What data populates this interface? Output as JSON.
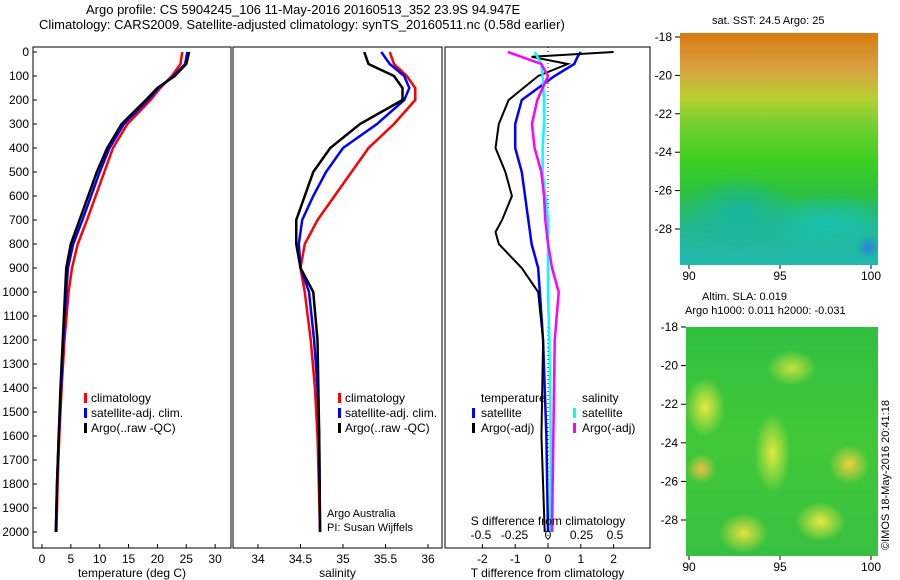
{
  "header": {
    "line1": "Argo profile: CS 5904245_106 11-May-2016 20160513_352 23.9S 94.947E",
    "line2": "Climatology: CARS2009. Satellite-adjusted climatology: synTS_20160511.nc (0.58d earlier)"
  },
  "footer": {
    "credit": "©IMOS 18-May-2016 20:41:18",
    "argo_australia": "Argo Australia",
    "pi": "PI: Susan Wijffels"
  },
  "colors": {
    "climatology": "#ff0000",
    "satellite": "#0000ff",
    "argo": "#000000",
    "s_satellite": "#00ffff",
    "s_argo": "#ff00ff"
  },
  "chart_data": [
    {
      "type": "line",
      "xlabel": "temperature (deg C)",
      "ylabel": "",
      "xlim": [
        -2,
        31
      ],
      "ylim": [
        2050,
        0
      ],
      "xticks": [
        0,
        5,
        10,
        15,
        20,
        25,
        30
      ],
      "yticks": [
        0,
        100,
        200,
        300,
        400,
        500,
        600,
        700,
        800,
        900,
        1000,
        1100,
        1200,
        1300,
        1400,
        1500,
        1600,
        1700,
        1800,
        1900,
        2000
      ],
      "depth": [
        0,
        50,
        100,
        150,
        200,
        300,
        400,
        500,
        600,
        700,
        800,
        900,
        1000,
        1200,
        1400,
        1600,
        1800,
        2000
      ],
      "legend": [
        "climatology",
        "satellite-adj. clim.",
        "Argo(..raw -QC)"
      ],
      "series": [
        {
          "name": "climatology",
          "values": [
            24.3,
            24,
            22.5,
            20.5,
            18.8,
            14.8,
            12.3,
            10.8,
            9.3,
            7.8,
            6.2,
            5.2,
            4.6,
            3.9,
            3.4,
            3.0,
            2.7,
            2.5
          ]
        },
        {
          "name": "satellite-adj. clim.",
          "values": [
            25.2,
            24.8,
            22.8,
            20.2,
            18.3,
            14.2,
            11.7,
            10,
            8.5,
            7,
            5.4,
            4.5,
            4.2,
            3.7,
            3.3,
            2.9,
            2.6,
            2.4
          ]
        },
        {
          "name": "Argo(..raw -QC)",
          "values": [
            25.5,
            25,
            23,
            20,
            18,
            13.8,
            11.3,
            9.5,
            8,
            6.5,
            5,
            4.2,
            4,
            3.6,
            3.2,
            2.9,
            2.6,
            2.4
          ]
        }
      ]
    },
    {
      "type": "line",
      "xlabel": "salinity",
      "xlim": [
        33.7,
        36.1
      ],
      "ylim": [
        2050,
        0
      ],
      "xticks": [
        34,
        34.5,
        35,
        35.5,
        36
      ],
      "depth": [
        0,
        50,
        100,
        150,
        200,
        300,
        400,
        500,
        600,
        700,
        800,
        900,
        1000,
        1200,
        1400,
        1600,
        2000
      ],
      "legend": [
        "climatology",
        "satellite-adj. clim.",
        "Argo(..raw -QC)"
      ],
      "series": [
        {
          "name": "climatology",
          "values": [
            35.55,
            35.6,
            35.75,
            35.85,
            35.85,
            35.6,
            35.3,
            35.1,
            34.9,
            34.7,
            34.55,
            34.5,
            34.55,
            34.62,
            34.67,
            34.7,
            34.73
          ]
        },
        {
          "name": "satellite-adj. clim.",
          "values": [
            35.45,
            35.55,
            35.72,
            35.78,
            35.72,
            35.4,
            35.0,
            34.8,
            34.65,
            34.52,
            34.48,
            34.5,
            34.6,
            34.66,
            34.7,
            34.72,
            34.73
          ]
        },
        {
          "name": "Argo(..raw -QC)",
          "values": [
            35.25,
            35.3,
            35.6,
            35.7,
            35.7,
            35.2,
            34.85,
            34.65,
            34.55,
            34.45,
            34.45,
            34.5,
            34.65,
            34.7,
            34.71,
            34.72,
            34.73
          ]
        }
      ]
    },
    {
      "type": "line",
      "xlabel": "T difference from climatology",
      "x2label": "S difference from climatology",
      "xlim": [
        -3.1,
        3.1
      ],
      "ylim": [
        2050,
        0
      ],
      "xticks": [
        -2,
        -1,
        0,
        1,
        2
      ],
      "x2ticks": [
        "-0.5",
        "-0.25",
        "0",
        "0.25",
        "0.5"
      ],
      "depth": [
        0,
        20,
        50,
        100,
        200,
        300,
        400,
        500,
        600,
        700,
        750,
        800,
        900,
        1000,
        1200,
        1600,
        2000
      ],
      "legend_titles": [
        "temperature",
        "salinity"
      ],
      "legend": [
        "satellite",
        "Argo(-adj)",
        "satellite",
        "Argo(-adj)"
      ],
      "series": [
        {
          "name": "T satellite",
          "values": [
            1,
            0.9,
            0.8,
            0.2,
            -0.8,
            -1,
            -1,
            -0.8,
            -0.7,
            -0.6,
            -0.55,
            -0.5,
            -0.3,
            -0.25,
            -0.15,
            -0.05,
            0
          ]
        },
        {
          "name": "T Argo(-adj)",
          "values": [
            2,
            -0.5,
            0.6,
            -0.3,
            -1.2,
            -1.5,
            -1.6,
            -1.3,
            -1.1,
            -1.4,
            -1.6,
            -1.5,
            -0.8,
            -0.3,
            -0.15,
            -0.2,
            -0.1
          ]
        },
        {
          "name": "S satellite",
          "values": [
            -0.1,
            -0.08,
            -0.05,
            -0.04,
            -0.03,
            -0.03,
            -0.04,
            -0.04,
            -0.02,
            0,
            0,
            0,
            0,
            0,
            0.01,
            0.02,
            0.02
          ]
        },
        {
          "name": "S Argo(-adj)",
          "values": [
            -0.3,
            -0.2,
            -0.05,
            0,
            -0.08,
            -0.12,
            -0.1,
            -0.05,
            -0.03,
            -0.02,
            -0.01,
            0,
            0.03,
            0.08,
            0.05,
            0.04,
            0.03
          ]
        }
      ]
    },
    {
      "type": "heatmap",
      "title": "sat. SST: 24.5 Argo: 25",
      "xticks": [
        90,
        95,
        100
      ],
      "yticks": [
        -18,
        -20,
        -22,
        -24,
        -26,
        -28
      ]
    },
    {
      "type": "heatmap",
      "title": "Altim. SLA: 0.019",
      "subtitle": "Argo h1000: 0.011 h2000: -0.031",
      "xticks": [
        90,
        95,
        100
      ],
      "yticks": [
        -18,
        -20,
        -22,
        -24,
        -26,
        -28
      ]
    }
  ]
}
